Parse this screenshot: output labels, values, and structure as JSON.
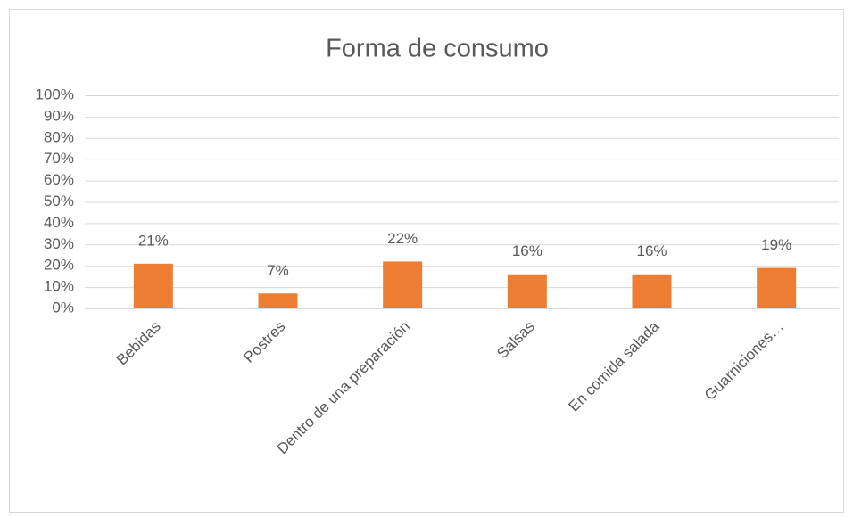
{
  "chart_data": {
    "type": "bar",
    "title": "Forma de consumo",
    "categories": [
      "Bebidas",
      "Postres",
      "Dentro de una preparación",
      "Salsas",
      "En comida salada",
      "Guarniciones…"
    ],
    "values": [
      21,
      7,
      22,
      16,
      16,
      19
    ],
    "value_labels": [
      "21%",
      "7%",
      "22%",
      "16%",
      "16%",
      "19%"
    ],
    "color": "#ed7d31",
    "ylim": [
      0,
      100
    ],
    "yticks": [
      {
        "value": 0,
        "label": "0%"
      },
      {
        "value": 10,
        "label": "10%"
      },
      {
        "value": 20,
        "label": "20%"
      },
      {
        "value": 30,
        "label": "30%"
      },
      {
        "value": 40,
        "label": "40%"
      },
      {
        "value": 50,
        "label": "50%"
      },
      {
        "value": 60,
        "label": "60%"
      },
      {
        "value": 70,
        "label": "70%"
      },
      {
        "value": 80,
        "label": "80%"
      },
      {
        "value": 90,
        "label": "90%"
      },
      {
        "value": 100,
        "label": "100%"
      }
    ],
    "grid": true
  }
}
